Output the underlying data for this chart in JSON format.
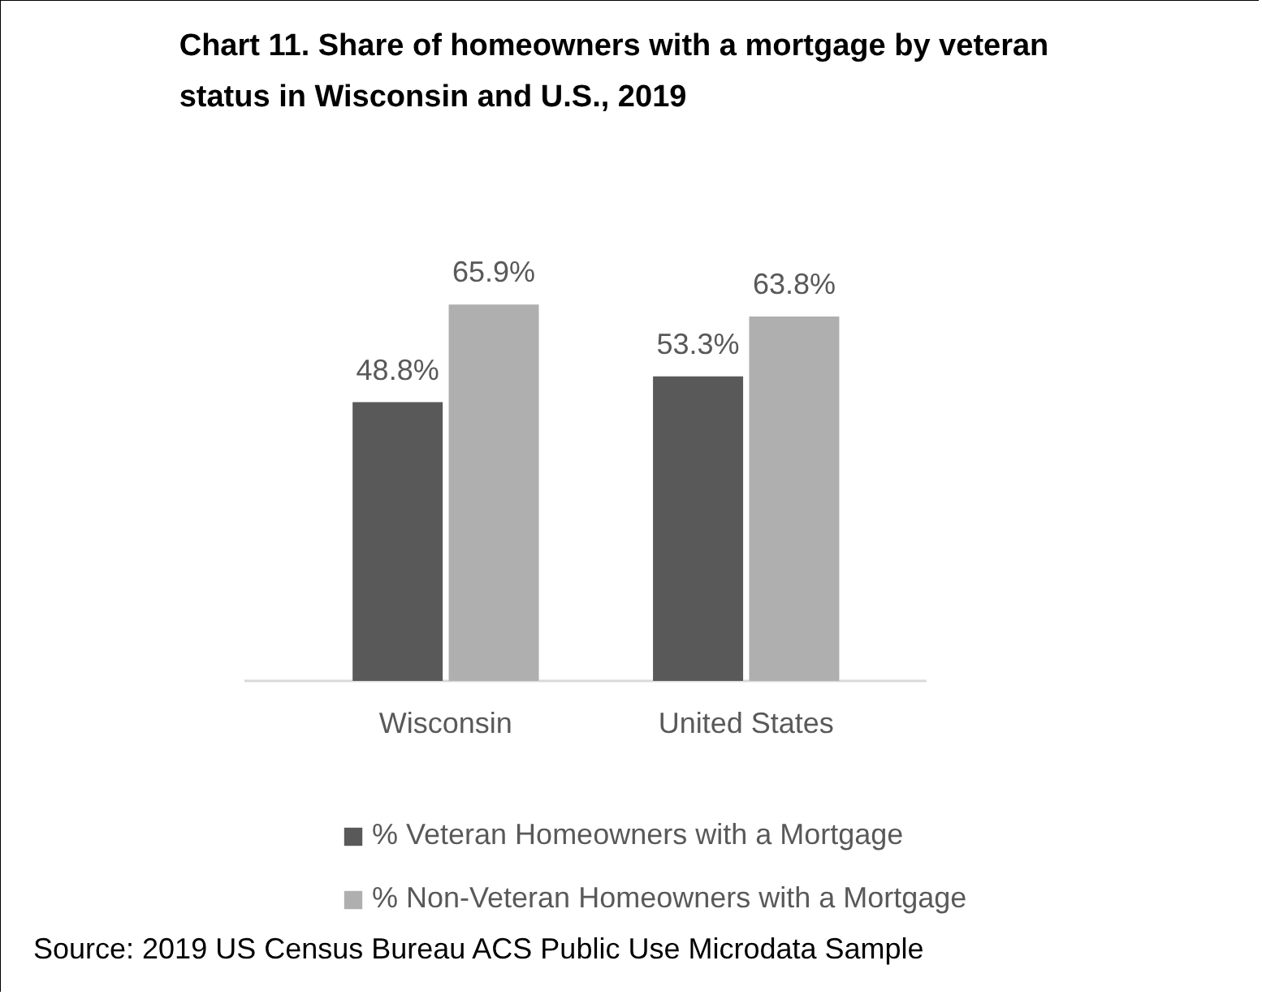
{
  "chart_data": {
    "type": "bar",
    "title": "Chart 11. Share of homeowners with a mortgage by veteran status in Wisconsin and U.S., 2019",
    "categories": [
      "Wisconsin",
      "United States"
    ],
    "series": [
      {
        "name": "% Veteran Homeowners with a Mortgage",
        "color": "#595959",
        "values": [
          48.8,
          53.3
        ],
        "value_labels": [
          "48.8%",
          "53.3%"
        ]
      },
      {
        "name": "% Non-Veteran Homeowners with a Mortgage",
        "color": "#afafaf",
        "values": [
          65.9,
          63.8
        ],
        "value_labels": [
          "65.9%",
          "63.8%"
        ]
      }
    ],
    "legend": "bottom",
    "grid": false,
    "annotations": [
      "Source: 2019 US Census Bureau ACS Public Use Microdata Sample"
    ]
  }
}
